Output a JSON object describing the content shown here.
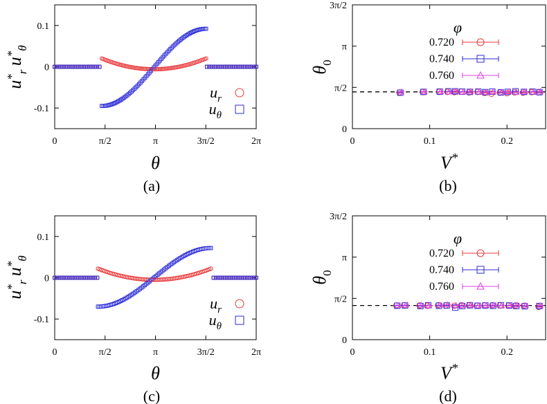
{
  "chart_data": [
    {
      "id": "a",
      "type": "scatter",
      "caption": "(a)",
      "xlabel": "θ",
      "ylabel": "u*r u*θ",
      "xlim": [
        0,
        6.2832
      ],
      "ylim": [
        -0.15,
        0.15
      ],
      "x_ticks": [
        {
          "v": 0,
          "label": "0"
        },
        {
          "v": 1.5708,
          "label": "π/2"
        },
        {
          "v": 3.1416,
          "label": "π"
        },
        {
          "v": 4.7124,
          "label": "3π/2"
        },
        {
          "v": 6.2832,
          "label": "2π"
        }
      ],
      "y_ticks": [
        {
          "v": -0.1,
          "label": "-0.1"
        },
        {
          "v": 0,
          "label": "0"
        },
        {
          "v": 0.1,
          "label": "0.1"
        }
      ],
      "legend": [
        {
          "name": "u_r",
          "label": "u",
          "sub": "r",
          "marker": "circle",
          "color": "#e8393a"
        },
        {
          "name": "u_theta",
          "label": "u",
          "sub": "θ",
          "marker": "square",
          "color": "#2b2bd6"
        }
      ],
      "legend_position": "bottom-right",
      "domain": [
        1.47,
        4.72
      ],
      "ur_end": 0.02,
      "ur_mid": -0.006,
      "ut_start": -0.095,
      "ut_end": 0.092
    },
    {
      "id": "c",
      "type": "scatter",
      "caption": "(c)",
      "xlabel": "θ",
      "ylabel": "u*r u*θ",
      "xlim": [
        0,
        6.2832
      ],
      "ylim": [
        -0.15,
        0.15
      ],
      "x_ticks": [
        {
          "v": 0,
          "label": "0"
        },
        {
          "v": 1.5708,
          "label": "π/2"
        },
        {
          "v": 3.1416,
          "label": "π"
        },
        {
          "v": 4.7124,
          "label": "3π/2"
        },
        {
          "v": 6.2832,
          "label": "2π"
        }
      ],
      "y_ticks": [
        {
          "v": -0.1,
          "label": "-0.1"
        },
        {
          "v": 0,
          "label": "0"
        },
        {
          "v": 0.1,
          "label": "0.1"
        }
      ],
      "legend": [
        {
          "name": "u_r",
          "label": "u",
          "sub": "r",
          "marker": "circle",
          "color": "#e8393a"
        },
        {
          "name": "u_theta",
          "label": "u",
          "sub": "θ",
          "marker": "square",
          "color": "#2b2bd6"
        }
      ],
      "legend_position": "bottom-right",
      "domain": [
        1.35,
        4.87
      ],
      "ur_end": 0.022,
      "ur_mid": -0.005,
      "ut_start": -0.07,
      "ut_end": 0.072
    },
    {
      "id": "b",
      "type": "scatter",
      "caption": "(b)",
      "xlabel": "V*",
      "ylabel": "θ0",
      "xlim": [
        0,
        0.25
      ],
      "ylim": [
        0,
        4.7124
      ],
      "x_ticks": [
        {
          "v": 0,
          "label": "0"
        },
        {
          "v": 0.1,
          "label": "0.1"
        },
        {
          "v": 0.2,
          "label": "0.2"
        }
      ],
      "y_ticks": [
        {
          "v": 0,
          "label": "0"
        },
        {
          "v": 1.5708,
          "label": "π/2"
        },
        {
          "v": 3.1416,
          "label": "π"
        },
        {
          "v": 4.7124,
          "label": "3π/2"
        }
      ],
      "legend_title": "φ",
      "legend": [
        {
          "name": "0.720",
          "marker": "circle",
          "color": "#e8393a"
        },
        {
          "name": "0.740",
          "marker": "square",
          "color": "#2b2bd6"
        },
        {
          "name": "0.760",
          "marker": "triangle",
          "color": "#e040e0"
        }
      ],
      "legend_position": "top-right",
      "reference_line": 1.4,
      "v_values": [
        0.062,
        0.092,
        0.113,
        0.124,
        0.133,
        0.142,
        0.152,
        0.163,
        0.172,
        0.181,
        0.192,
        0.201,
        0.211,
        0.222,
        0.233,
        0.242
      ],
      "series": [
        {
          "name": "0.720",
          "values": [
            1.38,
            1.39,
            1.4,
            1.4,
            1.39,
            1.41,
            1.38,
            1.4,
            1.36,
            1.33,
            1.37,
            1.35,
            1.38,
            1.37,
            1.39,
            1.38
          ]
        },
        {
          "name": "0.740",
          "values": [
            1.37,
            1.4,
            1.41,
            1.42,
            1.42,
            1.41,
            1.4,
            1.41,
            1.39,
            1.41,
            1.38,
            1.4,
            1.42,
            1.4,
            1.41,
            1.39
          ]
        },
        {
          "name": "0.760",
          "values": [
            1.4,
            1.41,
            1.41,
            1.4,
            1.43,
            1.4,
            1.42,
            1.4,
            1.39,
            1.4,
            1.4,
            1.41,
            1.39,
            1.41,
            1.4,
            1.42
          ]
        }
      ]
    },
    {
      "id": "d",
      "type": "scatter",
      "caption": "(d)",
      "xlabel": "V*",
      "ylabel": "θ0",
      "xlim": [
        0,
        0.25
      ],
      "ylim": [
        0,
        4.7124
      ],
      "x_ticks": [
        {
          "v": 0,
          "label": "0"
        },
        {
          "v": 0.1,
          "label": "0.1"
        },
        {
          "v": 0.2,
          "label": "0.2"
        }
      ],
      "y_ticks": [
        {
          "v": 0,
          "label": "0"
        },
        {
          "v": 1.5708,
          "label": "π/2"
        },
        {
          "v": 3.1416,
          "label": "π"
        },
        {
          "v": 4.7124,
          "label": "3π/2"
        }
      ],
      "legend_title": "φ",
      "legend": [
        {
          "name": "0.720",
          "marker": "circle",
          "color": "#e8393a"
        },
        {
          "name": "0.740",
          "marker": "square",
          "color": "#2b2bd6"
        },
        {
          "name": "0.760",
          "marker": "triangle",
          "color": "#e040e0"
        }
      ],
      "legend_position": "top-right",
      "reference_line": 1.3,
      "v_values": [
        0.058,
        0.068,
        0.088,
        0.098,
        0.112,
        0.122,
        0.133,
        0.142,
        0.152,
        0.162,
        0.172,
        0.182,
        0.192,
        0.203,
        0.212,
        0.223,
        0.242
      ],
      "series": [
        {
          "name": "0.720",
          "values": [
            1.3,
            1.31,
            1.3,
            1.29,
            1.31,
            1.3,
            1.29,
            1.31,
            1.3,
            1.29,
            1.3,
            1.31,
            1.3,
            1.29,
            1.3,
            1.29,
            1.25
          ]
        },
        {
          "name": "0.740",
          "values": [
            1.29,
            1.3,
            1.28,
            1.31,
            1.29,
            1.3,
            1.22,
            1.28,
            1.31,
            1.29,
            1.3,
            1.29,
            1.31,
            1.3,
            1.28,
            1.27,
            1.28
          ]
        },
        {
          "name": "0.760",
          "values": [
            1.31,
            1.32,
            1.31,
            1.3,
            1.32,
            1.33,
            1.3,
            1.31,
            1.32,
            1.3,
            1.31,
            1.32,
            1.3,
            1.31,
            1.32,
            1.3,
            1.3
          ]
        }
      ]
    }
  ]
}
